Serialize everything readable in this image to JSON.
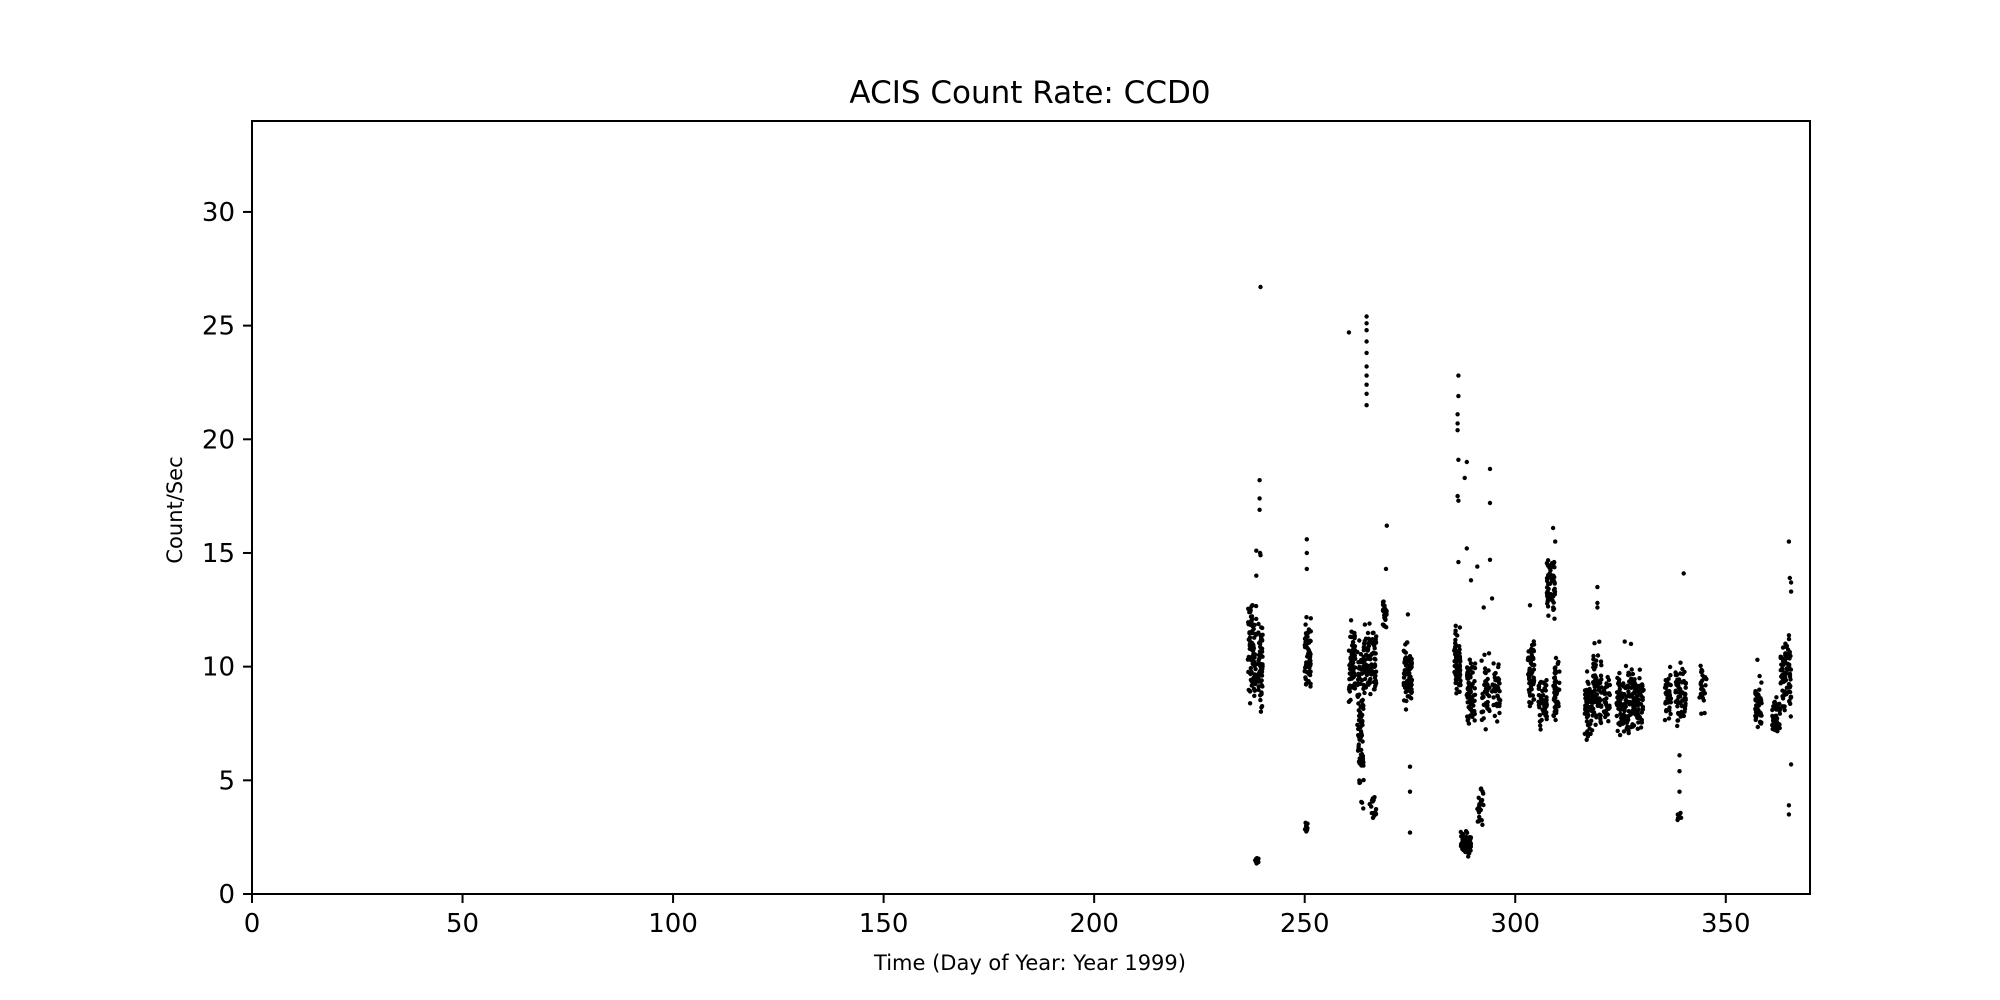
{
  "chart_data": {
    "type": "scatter",
    "title": "ACIS Count Rate: CCD0",
    "xlabel": "Time (Day of Year: Year 1999)",
    "ylabel": "Count/Sec",
    "xlim": [
      0,
      370
    ],
    "ylim": [
      0,
      34
    ],
    "xticks": [
      "0",
      "50",
      "100",
      "150",
      "200",
      "250",
      "300",
      "350"
    ],
    "yticks": [
      "0",
      "5",
      "10",
      "15",
      "20",
      "25",
      "30"
    ],
    "grid": false,
    "marker_color": "#000000",
    "clusters": [
      {
        "x": [
          236.5,
          238.5
        ],
        "y_range": [
          7.5,
          13.8
        ],
        "n": 90
      },
      {
        "x": [
          238.2,
          239.2
        ],
        "y_range": [
          1.2,
          1.7
        ],
        "n": 10
      },
      {
        "x": [
          239.0,
          240.0
        ],
        "y_range": [
          7.2,
          13.0
        ],
        "n": 60
      },
      {
        "x": [
          250.0,
          251.5
        ],
        "y_range": [
          8.2,
          12.8
        ],
        "n": 60
      },
      {
        "x": [
          250.0,
          250.7
        ],
        "y_range": [
          2.6,
          3.3
        ],
        "n": 10
      },
      {
        "x": [
          260.5,
          262.0
        ],
        "y_range": [
          7.8,
          12.7
        ],
        "n": 70
      },
      {
        "x": [
          262.5,
          264.0
        ],
        "y_range": [
          2.6,
          13.0
        ],
        "n": 90
      },
      {
        "x": [
          264.0,
          267.0
        ],
        "y_range": [
          8.0,
          12.5
        ],
        "n": 90
      },
      {
        "x": [
          265.0,
          267.0
        ],
        "y_range": [
          3.0,
          4.5
        ],
        "n": 15
      },
      {
        "x": [
          268.5,
          269.5
        ],
        "y_range": [
          11.2,
          13.2
        ],
        "n": 25
      },
      {
        "x": [
          273.5,
          275.5
        ],
        "y_range": [
          7.5,
          11.5
        ],
        "n": 80
      },
      {
        "x": [
          285.5,
          287.0
        ],
        "y_range": [
          8.0,
          12.5
        ],
        "n": 70
      },
      {
        "x": [
          287.0,
          289.5
        ],
        "y_range": [
          1.5,
          2.9
        ],
        "n": 60
      },
      {
        "x": [
          288.5,
          290.5
        ],
        "y_range": [
          6.8,
          11.0
        ],
        "n": 70
      },
      {
        "x": [
          291.0,
          292.5
        ],
        "y_range": [
          2.7,
          5.0
        ],
        "n": 25
      },
      {
        "x": [
          292.0,
          294.0
        ],
        "y_range": [
          6.6,
          11.5
        ],
        "n": 40
      },
      {
        "x": [
          294.5,
          296.5
        ],
        "y_range": [
          7.0,
          11.0
        ],
        "n": 40
      },
      {
        "x": [
          303.0,
          304.5
        ],
        "y_range": [
          7.5,
          12.0
        ],
        "n": 60
      },
      {
        "x": [
          305.5,
          307.5
        ],
        "y_range": [
          6.5,
          10.5
        ],
        "n": 50
      },
      {
        "x": [
          307.5,
          309.5
        ],
        "y_range": [
          11.5,
          15.5
        ],
        "n": 60
      },
      {
        "x": [
          309.0,
          310.5
        ],
        "y_range": [
          7.0,
          11.0
        ],
        "n": 50
      },
      {
        "x": [
          316.5,
          318.5
        ],
        "y_range": [
          6.4,
          10.0
        ],
        "n": 70
      },
      {
        "x": [
          318.5,
          320.5
        ],
        "y_range": [
          6.7,
          11.5
        ],
        "n": 70
      },
      {
        "x": [
          321.0,
          322.5
        ],
        "y_range": [
          7.0,
          10.0
        ],
        "n": 30
      },
      {
        "x": [
          324.0,
          327.5
        ],
        "y_range": [
          6.5,
          10.5
        ],
        "n": 100
      },
      {
        "x": [
          327.5,
          330.5
        ],
        "y_range": [
          6.5,
          10.5
        ],
        "n": 90
      },
      {
        "x": [
          335.5,
          337.0
        ],
        "y_range": [
          7.0,
          10.3
        ],
        "n": 40
      },
      {
        "x": [
          338.0,
          340.5
        ],
        "y_range": [
          7.0,
          10.5
        ],
        "n": 60
      },
      {
        "x": [
          338.5,
          339.5
        ],
        "y_range": [
          3.0,
          3.8
        ],
        "n": 8
      },
      {
        "x": [
          343.5,
          345.5
        ],
        "y_range": [
          7.3,
          10.5
        ],
        "n": 25
      },
      {
        "x": [
          357.0,
          358.5
        ],
        "y_range": [
          6.8,
          9.8
        ],
        "n": 50
      },
      {
        "x": [
          361.0,
          363.0
        ],
        "y_range": [
          6.8,
          9.0
        ],
        "n": 50
      },
      {
        "x": [
          363.0,
          365.5
        ],
        "y_range": [
          6.8,
          12.5
        ],
        "n": 90
      }
    ],
    "points": [
      [
        239.5,
        26.7
      ],
      [
        239.3,
        18.2
      ],
      [
        239.3,
        17.4
      ],
      [
        239.3,
        16.9
      ],
      [
        238.5,
        15.1
      ],
      [
        239.4,
        15.0
      ],
      [
        239.5,
        14.9
      ],
      [
        238.5,
        14.0
      ],
      [
        250.5,
        15.6
      ],
      [
        250.5,
        15.0
      ],
      [
        250.5,
        14.3
      ],
      [
        260.5,
        24.7
      ],
      [
        264.7,
        25.4
      ],
      [
        264.7,
        25.1
      ],
      [
        264.7,
        24.8
      ],
      [
        264.7,
        24.3
      ],
      [
        264.7,
        23.8
      ],
      [
        264.7,
        23.2
      ],
      [
        264.7,
        22.8
      ],
      [
        264.7,
        22.4
      ],
      [
        264.7,
        22.0
      ],
      [
        264.7,
        21.5
      ],
      [
        269.5,
        16.2
      ],
      [
        269.3,
        14.3
      ],
      [
        274.5,
        12.3
      ],
      [
        275.0,
        5.6
      ],
      [
        275.0,
        4.5
      ],
      [
        275.0,
        2.7
      ],
      [
        286.5,
        22.8
      ],
      [
        286.5,
        21.9
      ],
      [
        286.3,
        21.1
      ],
      [
        286.3,
        20.7
      ],
      [
        286.3,
        20.4
      ],
      [
        286.5,
        19.1
      ],
      [
        288.5,
        19.0
      ],
      [
        286.3,
        17.5
      ],
      [
        286.5,
        17.3
      ],
      [
        288.0,
        18.3
      ],
      [
        288.5,
        15.2
      ],
      [
        286.5,
        14.6
      ],
      [
        294.0,
        18.7
      ],
      [
        294.0,
        17.2
      ],
      [
        294.0,
        14.7
      ],
      [
        294.5,
        13.0
      ],
      [
        291.0,
        14.4
      ],
      [
        289.5,
        13.8
      ],
      [
        292.5,
        12.6
      ],
      [
        309.0,
        16.1
      ],
      [
        309.5,
        15.5
      ],
      [
        303.5,
        12.7
      ],
      [
        319.5,
        13.5
      ],
      [
        319.5,
        12.8
      ],
      [
        319.5,
        12.6
      ],
      [
        326.0,
        11.1
      ],
      [
        327.5,
        11.0
      ],
      [
        340.0,
        14.1
      ],
      [
        339.0,
        6.1
      ],
      [
        339.0,
        5.4
      ],
      [
        339.0,
        4.5
      ],
      [
        357.5,
        10.3
      ],
      [
        365.0,
        15.5
      ],
      [
        365.2,
        13.9
      ],
      [
        365.5,
        13.7
      ],
      [
        365.5,
        13.3
      ],
      [
        365.5,
        5.7
      ],
      [
        365.0,
        3.9
      ],
      [
        365.0,
        3.5
      ]
    ]
  }
}
